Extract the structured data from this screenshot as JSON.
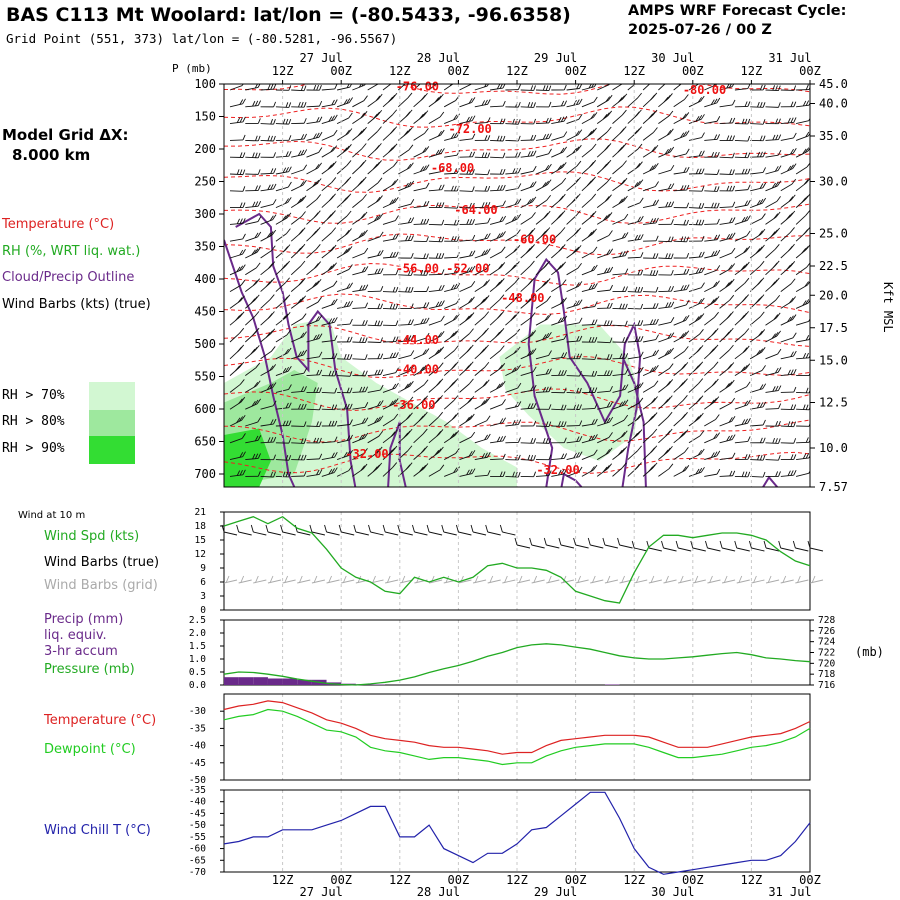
{
  "header": {
    "title": "BAS C113 Mt Woolard:  lat/lon = (-80.5433, -96.6358)",
    "subtitle": "Grid Point (551, 373) lat/lon = (-80.5281, -96.5567)",
    "cycle_line1": "AMPS WRF Forecast Cycle:",
    "cycle_line2": "2025-07-26 / 00  Z"
  },
  "left_legend": {
    "grid_label": "Model Grid ΔX:",
    "grid_value": "8.000 km",
    "temperature": "Temperature (°C)",
    "rh": "RH (%, WRT liq. wat.)",
    "cloud": "Cloud/Precip Outline",
    "wind": "Wind Barbs (kts) (true)",
    "rh_thresholds": [
      "RH > 70%",
      "RH > 80%",
      "RH > 90%"
    ],
    "rh_colors": [
      "#d2f7d2",
      "#9ee89e",
      "#33dd33"
    ]
  },
  "time_axis": {
    "hour_labels": [
      "12Z",
      "00Z",
      "12Z",
      "00Z",
      "12Z",
      "00Z",
      "12Z",
      "00Z",
      "12Z",
      "00Z"
    ],
    "hour_positions": [
      1.5,
      2,
      2.5,
      3,
      3.5,
      4,
      4.5,
      5,
      5.5,
      6
    ],
    "day_labels": [
      "27 Jul",
      "28 Jul",
      "29 Jul",
      "30 Jul",
      "31 Jul"
    ],
    "day_positions": [
      2,
      3,
      4,
      5,
      6
    ]
  },
  "chart_data": [
    {
      "id": "sounding",
      "type": "heatmap",
      "ylabel": "P (mb)",
      "y2label": "Kft MSL",
      "ylim": [
        100,
        720
      ],
      "xlim": [
        1.0,
        6.0
      ],
      "y_ticks": [
        100,
        150,
        200,
        250,
        300,
        350,
        400,
        450,
        500,
        550,
        600,
        650,
        700
      ],
      "kft_ticks": [
        {
          "p": 100,
          "label": "45.0"
        },
        {
          "p": 130,
          "label": "40.0"
        },
        {
          "p": 180,
          "label": "35.0"
        },
        {
          "p": 250,
          "label": "30.0"
        },
        {
          "p": 330,
          "label": "25.0"
        },
        {
          "p": 380,
          "label": "22.5"
        },
        {
          "p": 425,
          "label": "20.0"
        },
        {
          "p": 475,
          "label": "17.5"
        },
        {
          "p": 525,
          "label": "15.0"
        },
        {
          "p": 590,
          "label": "12.5"
        },
        {
          "p": 660,
          "label": "10.0"
        },
        {
          "p": 745,
          "label": "7.57"
        }
      ],
      "temperature_labels": [
        {
          "x": 2.65,
          "p": 110,
          "label": "-76.00"
        },
        {
          "x": 5.1,
          "p": 115,
          "label": "-80.00"
        },
        {
          "x": 3.1,
          "p": 175,
          "label": "-72.00"
        },
        {
          "x": 2.95,
          "p": 235,
          "label": "-68.00"
        },
        {
          "x": 3.15,
          "p": 300,
          "label": "-64.00"
        },
        {
          "x": 3.65,
          "p": 345,
          "label": "-60.00"
        },
        {
          "x": 2.65,
          "p": 390,
          "label": "-56.00"
        },
        {
          "x": 3.08,
          "p": 390,
          "label": "-52.00"
        },
        {
          "x": 3.55,
          "p": 435,
          "label": "-48.00"
        },
        {
          "x": 2.65,
          "p": 500,
          "label": "-44.00"
        },
        {
          "x": 2.65,
          "p": 545,
          "label": "-40.00"
        },
        {
          "x": 2.62,
          "p": 600,
          "label": "-36.00"
        },
        {
          "x": 2.22,
          "p": 675,
          "label": "-32.00"
        },
        {
          "x": 3.85,
          "p": 700,
          "label": "-32.00"
        }
      ],
      "rh_regions": [
        {
          "level": "70",
          "points": [
            [
              1.0,
              560
            ],
            [
              1.4,
              520
            ],
            [
              1.6,
              470
            ],
            [
              1.9,
              460
            ],
            [
              2.0,
              520
            ],
            [
              2.3,
              560
            ],
            [
              2.6,
              590
            ],
            [
              2.9,
              620
            ],
            [
              3.2,
              660
            ],
            [
              3.5,
              690
            ],
            [
              3.5,
              720
            ],
            [
              1.0,
              720
            ]
          ]
        },
        {
          "level": "70",
          "points": [
            [
              3.35,
              520
            ],
            [
              3.7,
              470
            ],
            [
              4.2,
              470
            ],
            [
              4.45,
              520
            ],
            [
              4.55,
              580
            ],
            [
              4.5,
              640
            ],
            [
              4.2,
              680
            ],
            [
              3.9,
              660
            ],
            [
              3.6,
              610
            ],
            [
              3.4,
              570
            ]
          ]
        },
        {
          "level": "80",
          "points": [
            [
              1.0,
              590
            ],
            [
              1.4,
              560
            ],
            [
              1.6,
              540
            ],
            [
              1.8,
              560
            ],
            [
              1.75,
              620
            ],
            [
              1.6,
              700
            ],
            [
              1.0,
              720
            ]
          ]
        },
        {
          "level": "90",
          "points": [
            [
              1.0,
              640
            ],
            [
              1.3,
              630
            ],
            [
              1.4,
              680
            ],
            [
              1.3,
              720
            ],
            [
              1.0,
              720
            ]
          ]
        }
      ],
      "cloud_outline": [
        [
          [
            1.1,
            320
          ],
          [
            1.3,
            300
          ],
          [
            1.4,
            320
          ],
          [
            1.42,
            380
          ],
          [
            1.5,
            420
          ],
          [
            1.55,
            470
          ],
          [
            1.62,
            520
          ],
          [
            1.72,
            540
          ],
          [
            1.72,
            470
          ],
          [
            1.8,
            450
          ],
          [
            1.9,
            470
          ],
          [
            1.95,
            540
          ],
          [
            2.05,
            600
          ],
          [
            2.08,
            680
          ],
          [
            2.12,
            720
          ]
        ],
        [
          [
            1.0,
            340
          ],
          [
            1.15,
            420
          ],
          [
            1.25,
            460
          ],
          [
            1.35,
            520
          ],
          [
            1.42,
            580
          ],
          [
            1.5,
            640
          ],
          [
            1.55,
            700
          ],
          [
            1.6,
            720
          ]
        ],
        [
          [
            2.4,
            720
          ],
          [
            2.42,
            660
          ],
          [
            2.5,
            620
          ],
          [
            2.5,
            680
          ],
          [
            2.55,
            720
          ]
        ],
        [
          [
            3.75,
            720
          ],
          [
            3.8,
            660
          ],
          [
            3.65,
            580
          ],
          [
            3.6,
            500
          ],
          [
            3.65,
            400
          ],
          [
            3.75,
            370
          ],
          [
            3.85,
            390
          ],
          [
            3.9,
            450
          ],
          [
            3.95,
            520
          ],
          [
            4.1,
            560
          ],
          [
            4.25,
            620
          ],
          [
            4.38,
            580
          ],
          [
            4.42,
            500
          ],
          [
            4.5,
            470
          ],
          [
            4.55,
            520
          ],
          [
            4.52,
            600
          ],
          [
            4.45,
            660
          ],
          [
            4.4,
            720
          ]
        ],
        [
          [
            4.4,
            520
          ],
          [
            4.5,
            560
          ],
          [
            4.58,
            620
          ],
          [
            4.6,
            720
          ]
        ],
        [
          [
            3.88,
            720
          ],
          [
            3.9,
            700
          ],
          [
            4.0,
            710
          ],
          [
            4.05,
            720
          ]
        ],
        [
          [
            5.6,
            720
          ],
          [
            5.65,
            705
          ],
          [
            5.72,
            720
          ]
        ]
      ]
    },
    {
      "id": "wind10m",
      "type": "line",
      "title": "Wind at 10 m",
      "ylabel": "Wind Spd (kts)",
      "ylim": [
        0,
        21
      ],
      "y_ticks": [
        0,
        3,
        6,
        9,
        12,
        15,
        18,
        21
      ],
      "x": [
        1.0,
        1.125,
        1.25,
        1.375,
        1.5,
        1.625,
        1.75,
        1.875,
        2.0,
        2.125,
        2.25,
        2.375,
        2.5,
        2.625,
        2.75,
        2.875,
        3.0,
        3.125,
        3.25,
        3.375,
        3.5,
        3.625,
        3.75,
        3.875,
        4.0,
        4.125,
        4.25,
        4.375,
        4.5,
        4.625,
        4.75,
        4.875,
        5.0,
        5.125,
        5.25,
        5.375,
        5.5,
        5.625,
        5.75,
        5.875,
        6.0
      ],
      "series": [
        {
          "name": "Wind Spd (kts)",
          "color": "#22aa22",
          "values": [
            18,
            19,
            20,
            18.5,
            20,
            17.5,
            16.5,
            13,
            9,
            7,
            6,
            4,
            3.5,
            7,
            6,
            7,
            6,
            7,
            9.5,
            10,
            9,
            9,
            8.5,
            7,
            4,
            3,
            2,
            1.5,
            8,
            13.5,
            16,
            16,
            15.5,
            16,
            16.5,
            16.5,
            16,
            15,
            12.5,
            10.5,
            9.5
          ]
        }
      ],
      "labels_extra": [
        "Wind Barbs (true)",
        "Wind Barbs (grid)"
      ]
    },
    {
      "id": "precip_pressure",
      "type": "area",
      "y1label": "Precip (mm) liq. equiv. 3-hr accum",
      "y1_lines": [
        "Precip (mm)",
        "liq. equiv.",
        "3-hr accum"
      ],
      "y2label": "Pressure (mb)",
      "y2_unit": "(mb)",
      "ylim": [
        0,
        2.5
      ],
      "y_ticks": [
        0.0,
        0.5,
        1.0,
        1.5,
        2.0,
        2.5
      ],
      "y_tick_labels": [
        "0.0",
        "0.5",
        "1.0",
        "1.5",
        "2.0",
        "2.5"
      ],
      "y2lim": [
        716,
        728
      ],
      "y2_ticks": [
        716,
        718,
        720,
        722,
        724,
        726,
        728
      ],
      "x": [
        1.0,
        1.125,
        1.25,
        1.375,
        1.5,
        1.625,
        1.75,
        1.875,
        2.0,
        2.125,
        2.25,
        2.375,
        2.5,
        2.625,
        2.75,
        2.875,
        3.0,
        3.125,
        3.25,
        3.375,
        3.5,
        3.625,
        3.75,
        3.875,
        4.0,
        4.125,
        4.25,
        4.375,
        4.5,
        4.625,
        4.75,
        4.875,
        5.0,
        5.125,
        5.25,
        5.375,
        5.5,
        5.625,
        5.75,
        5.875,
        6.0
      ],
      "series": [
        {
          "name": "Pressure (mb)",
          "axis": "y2",
          "color": "#22aa22",
          "values": [
            718.0,
            718.4,
            718.3,
            718.0,
            717.6,
            717.1,
            716.7,
            716.3,
            716.1,
            716.0,
            716.2,
            716.5,
            716.9,
            717.5,
            718.3,
            719.0,
            719.6,
            720.4,
            721.3,
            722.0,
            722.9,
            723.4,
            723.6,
            723.4,
            723.0,
            722.6,
            722.0,
            721.4,
            721.0,
            720.8,
            720.8,
            721.0,
            721.2,
            721.5,
            721.8,
            722.0,
            721.6,
            721.0,
            720.8,
            720.5,
            720.3
          ]
        },
        {
          "name": "Precip (mm)",
          "axis": "y1",
          "color": "#6a2a8a",
          "values": [
            0.3,
            0.3,
            0.3,
            0.25,
            0.25,
            0.2,
            0.2,
            0.1,
            0.05,
            0.03,
            0.02,
            0.0,
            0.0,
            0.0,
            0.0,
            0.0,
            0.0,
            0.0,
            0.0,
            0.0,
            0.0,
            0.0,
            0.0,
            0.0,
            0.0,
            0.0,
            0.02,
            0.0,
            0.0,
            0.0,
            0.0,
            0.0,
            0.0,
            0.0,
            0.0,
            0.0,
            0.0,
            0.0,
            0.0,
            0.0,
            0.0
          ]
        }
      ]
    },
    {
      "id": "temp_dew",
      "type": "line",
      "ylim": [
        -50,
        -25
      ],
      "y_ticks": [
        -50,
        -45,
        -40,
        -35,
        -30
      ],
      "x": [
        1.0,
        1.125,
        1.25,
        1.375,
        1.5,
        1.625,
        1.75,
        1.875,
        2.0,
        2.125,
        2.25,
        2.375,
        2.5,
        2.625,
        2.75,
        2.875,
        3.0,
        3.125,
        3.25,
        3.375,
        3.5,
        3.625,
        3.75,
        3.875,
        4.0,
        4.125,
        4.25,
        4.375,
        4.5,
        4.625,
        4.75,
        4.875,
        5.0,
        5.125,
        5.25,
        5.375,
        5.5,
        5.625,
        5.75,
        5.875,
        6.0
      ],
      "series": [
        {
          "name": "Temperature (°C)",
          "color": "#dd2222",
          "values": [
            -29.5,
            -28.5,
            -28.0,
            -27.0,
            -27.5,
            -29.0,
            -30.5,
            -32.5,
            -33.5,
            -35.0,
            -37.0,
            -38.0,
            -38.5,
            -39.0,
            -40.0,
            -40.5,
            -40.5,
            -41.0,
            -41.5,
            -42.5,
            -42.0,
            -42.0,
            -40.0,
            -38.5,
            -38.0,
            -37.5,
            -37.0,
            -37.0,
            -37.0,
            -37.5,
            -39.0,
            -40.5,
            -40.5,
            -40.5,
            -39.5,
            -38.5,
            -37.5,
            -37.0,
            -36.5,
            -35.0,
            -33.0
          ]
        },
        {
          "name": "Dewpoint (°C)",
          "color": "#22cc22",
          "values": [
            -32.5,
            -31.5,
            -31.0,
            -29.5,
            -30.0,
            -31.5,
            -33.5,
            -35.5,
            -36.0,
            -37.5,
            -40.5,
            -41.5,
            -42.0,
            -43.0,
            -44.0,
            -43.5,
            -43.5,
            -44.0,
            -44.5,
            -45.5,
            -45.0,
            -45.0,
            -43.0,
            -41.5,
            -40.5,
            -40.0,
            -39.5,
            -39.5,
            -39.5,
            -40.5,
            -42.0,
            -43.5,
            -43.5,
            -43.0,
            -42.5,
            -41.5,
            -40.5,
            -40.0,
            -39.0,
            -37.5,
            -35.0
          ]
        }
      ]
    },
    {
      "id": "windchill",
      "type": "line",
      "ylim": [
        -70,
        -35
      ],
      "y_ticks": [
        -70,
        -65,
        -60,
        -55,
        -50,
        -45,
        -40,
        -35
      ],
      "x": [
        1.0,
        1.125,
        1.25,
        1.375,
        1.5,
        1.625,
        1.75,
        1.875,
        2.0,
        2.125,
        2.25,
        2.375,
        2.5,
        2.625,
        2.75,
        2.875,
        3.0,
        3.125,
        3.25,
        3.375,
        3.5,
        3.625,
        3.75,
        3.875,
        4.0,
        4.125,
        4.25,
        4.375,
        4.5,
        4.625,
        4.75,
        4.875,
        5.0,
        5.125,
        5.25,
        5.375,
        5.5,
        5.625,
        5.75,
        5.875,
        6.0
      ],
      "series": [
        {
          "name": "Wind Chill T (°C)",
          "color": "#2222aa",
          "values": [
            -58,
            -57,
            -55,
            -55,
            -52,
            -52,
            -52,
            -50,
            -48,
            -45,
            -42,
            -42,
            -55,
            -55,
            -50,
            -60,
            -63,
            -66,
            -62,
            -62,
            -58,
            -52,
            -51,
            -46,
            -41,
            -36,
            -36,
            -47,
            -60,
            -68,
            -71,
            -70,
            -69,
            -68,
            -67,
            -66,
            -65,
            -65,
            -63,
            -57,
            -49
          ]
        }
      ]
    }
  ]
}
